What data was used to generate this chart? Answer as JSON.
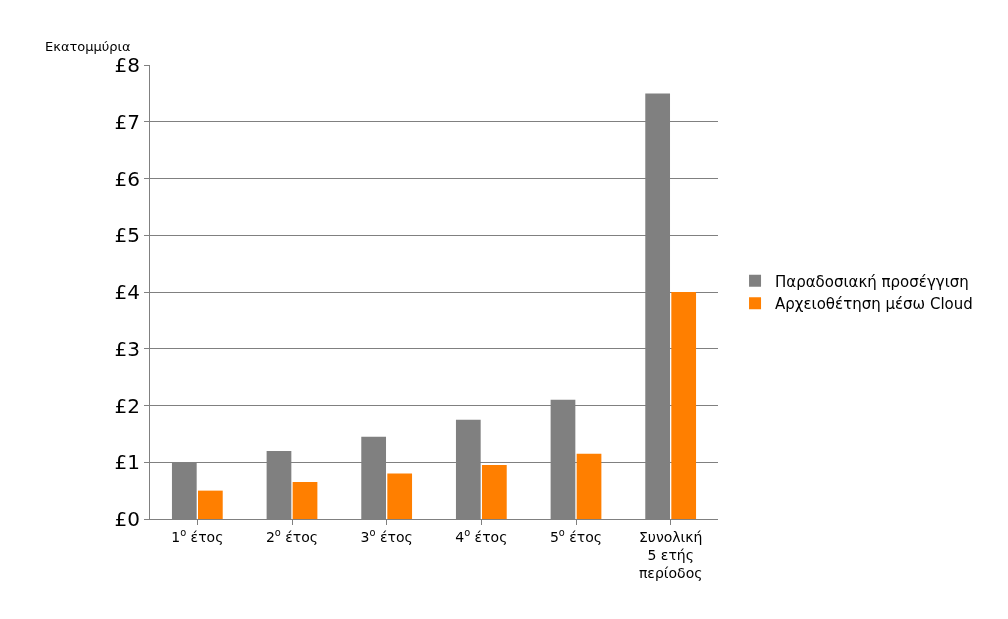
{
  "chart_data": {
    "type": "bar",
    "ylabel": "Εκατομμύρια",
    "categories": [
      "1$^{ο}$ έτος",
      "2$^{ο}$ έτος",
      "3$^{ο}$ έτος",
      "4$^{ο}$ έτος",
      "5$^{ο}$ έτος",
      "Συνολική\n5 ετής\nπερίοδος"
    ],
    "series": [
      {
        "name": "Παραδοσιακή προσέγγιση",
        "color": "#808080",
        "values": [
          1.0,
          1.2,
          1.45,
          1.75,
          2.1,
          7.5
        ]
      },
      {
        "name": "Αρχειοθέτηση μέσω Cloud",
        "color": "#ff7f00",
        "values": [
          0.5,
          0.65,
          0.8,
          0.95,
          1.15,
          4.0
        ]
      }
    ],
    "ylim": [
      0,
      8
    ],
    "yticks": [
      {
        "value": 0,
        "label": "£0"
      },
      {
        "value": 1,
        "label": "£1"
      },
      {
        "value": 2,
        "label": "£2"
      },
      {
        "value": 3,
        "label": "£3"
      },
      {
        "value": 4,
        "label": "£4"
      },
      {
        "value": 5,
        "label": "£5"
      },
      {
        "value": 6,
        "label": "£6"
      },
      {
        "value": 7,
        "label": "£7"
      },
      {
        "value": 8,
        "label": "£8"
      }
    ],
    "grid": "y",
    "legend": "right"
  }
}
